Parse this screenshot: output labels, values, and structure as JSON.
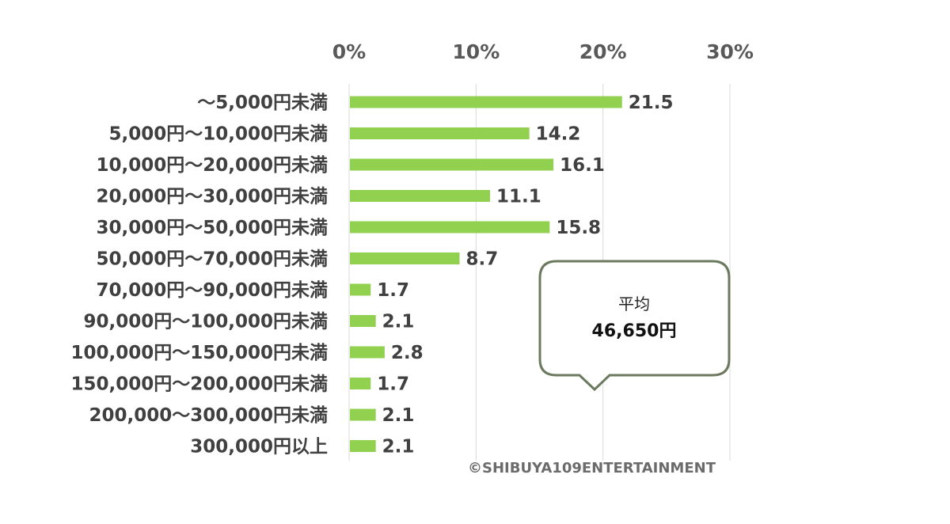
{
  "chart_data": {
    "type": "bar",
    "orientation": "horizontal",
    "categories": [
      "～5,000円未満",
      "5,000円～10,000円未満",
      "10,000円～20,000円未満",
      "20,000円～30,000円未満",
      "30,000円～50,000円未満",
      "50,000円～70,000円未満",
      "70,000円～90,000円未満",
      "90,000円～100,000円未満",
      "100,000円～150,000円未満",
      "150,000円～200,000円未満",
      "200,000～300,000円未満",
      "300,000円以上"
    ],
    "values": [
      21.5,
      14.2,
      16.1,
      11.1,
      15.8,
      8.7,
      1.7,
      2.1,
      2.8,
      1.7,
      2.1,
      2.1
    ],
    "value_labels": [
      "21.5",
      "14.2",
      "16.1",
      "11.1",
      "15.8",
      "8.7",
      "1.7",
      "2.1",
      "2.8",
      "1.7",
      "2.1",
      "2.1"
    ],
    "xlim": [
      0,
      30
    ],
    "xticks": [
      0,
      10,
      20,
      30
    ],
    "xtick_labels": [
      "0%",
      "10%",
      "20%",
      "30%"
    ],
    "axis_position": "top",
    "grid": true,
    "bar_color": "#92d050",
    "callout": {
      "title": "平均",
      "value": "46,650円"
    },
    "credit": "©SHIBUYA109ENTERTAINMENT"
  }
}
